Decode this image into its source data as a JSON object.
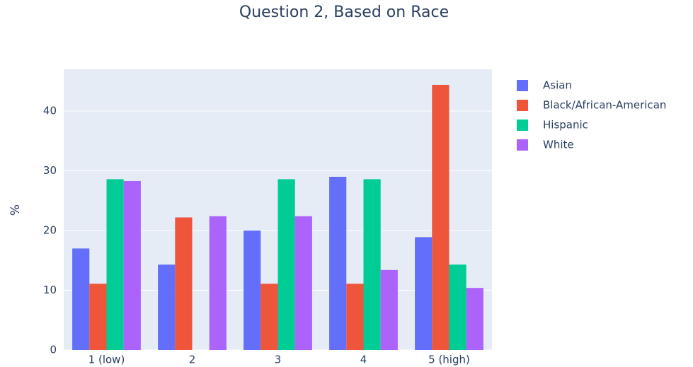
{
  "chart_data": {
    "type": "bar",
    "title": "Question 2, Based on Race",
    "ylabel": "%",
    "categories": [
      "1 (low)",
      "2",
      "3",
      "4",
      "5 (high)"
    ],
    "series": [
      {
        "name": "Asian",
        "color": "#636efa",
        "values": [
          17,
          14.3,
          20,
          29,
          18.9
        ]
      },
      {
        "name": "Black/African-American",
        "color": "#ef553b",
        "values": [
          11.1,
          22.2,
          11.1,
          11.1,
          44.4
        ]
      },
      {
        "name": "Hispanic",
        "color": "#00cc96",
        "values": [
          28.6,
          0,
          28.6,
          28.6,
          14.3
        ]
      },
      {
        "name": "White",
        "color": "#ab63fa",
        "values": [
          28.3,
          22.4,
          22.4,
          13.4,
          10.4
        ]
      }
    ],
    "ylim": [
      0,
      47
    ],
    "yticks": [
      0,
      10,
      20,
      30,
      40
    ],
    "grid": true,
    "legend": "right"
  }
}
